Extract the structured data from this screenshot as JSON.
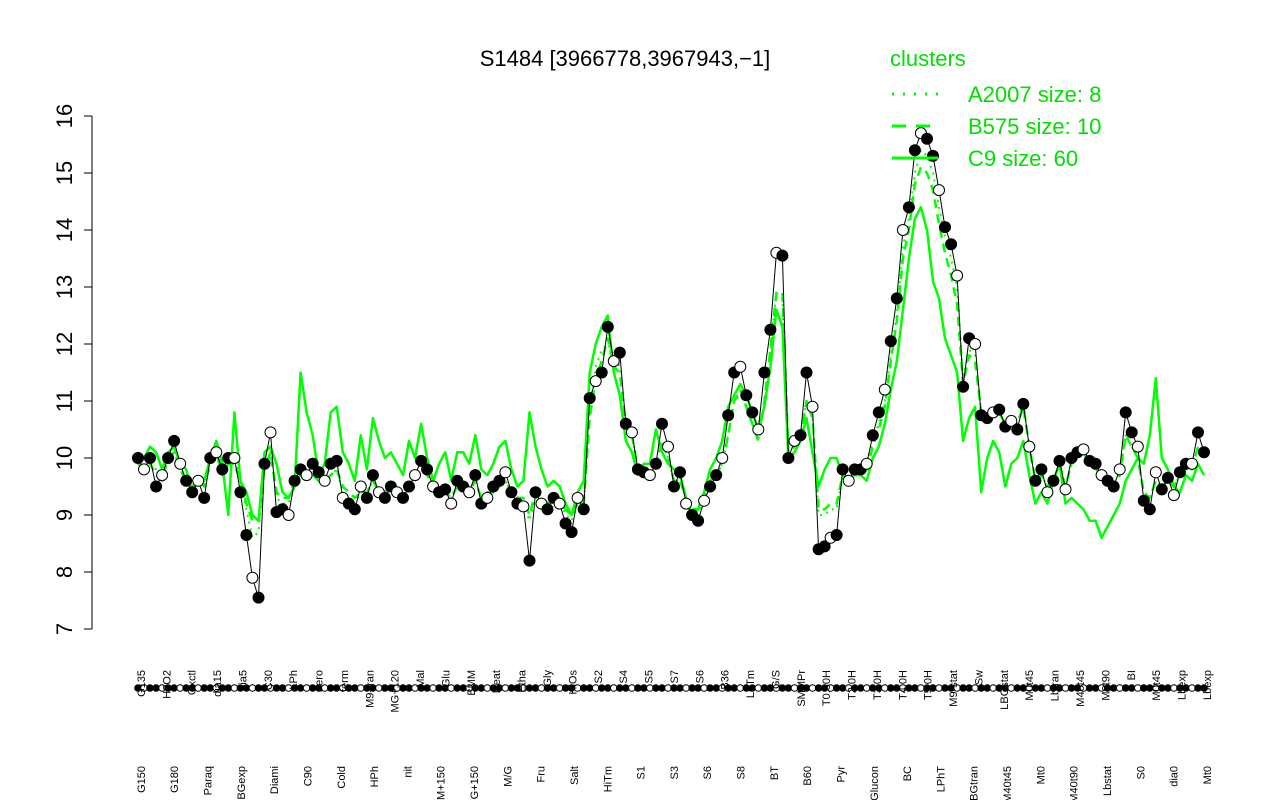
{
  "chart_data": {
    "type": "line",
    "title": "S1484 [3966778,3967943,−1]",
    "xlabel": "",
    "ylabel": "",
    "ylim": [
      7,
      16
    ],
    "yticks": [
      7,
      8,
      9,
      10,
      11,
      12,
      13,
      14,
      15,
      16
    ],
    "grid": false,
    "legend": {
      "title": "clusters",
      "position": "top-right",
      "items": [
        {
          "label": "A2007 size: 8",
          "style": "dotted"
        },
        {
          "label": "B575 size: 10",
          "style": "dashed"
        },
        {
          "label": "C9 size: 60",
          "style": "solid"
        }
      ]
    },
    "x_labels_upper": [
      "G135",
      "H2O2",
      "Oxctl",
      "dia15",
      "dia5",
      "C30",
      "LPh",
      "aero",
      "ferm",
      "M9-tran",
      "MG+120",
      "Mal",
      "Glu",
      "BMM",
      "Heat",
      "Etha",
      "Gly",
      "HiOs",
      "S2",
      "S4",
      "S5",
      "S7",
      "S6",
      "B36",
      "LoTm",
      "G/S",
      "SMMPr",
      "T0.30H",
      "T2.0H",
      "T3.0H",
      "T4.0H",
      "T5.0H",
      "M9-stat",
      "Sw",
      "LBGstat",
      "M0t45",
      "Lbtran",
      "M40t45",
      "M0t90",
      "BI",
      "M0t45",
      "Lbexp",
      "Lbexp"
    ],
    "x_labels_lower": [
      "G150",
      "G180",
      "Paraq",
      "LBGexp",
      "Diami",
      "C90",
      "Cold",
      "HPh",
      "nit",
      "GM+150",
      "MG+150",
      "M/G",
      "Fru",
      "Salt",
      "HiTm",
      "S1",
      "S3",
      "S6",
      "S8",
      "BT",
      "B60",
      "Pyr",
      "Glucon",
      "BC",
      "LPhT",
      "LBGtran",
      "M40t45",
      "Mt0",
      "M40t90",
      "Lbstat",
      "S0",
      "dia0",
      "Mt0"
    ],
    "series": [
      {
        "name": "",
        "values": [
          10.0,
          9.8,
          10.0,
          9.5,
          9.7,
          10.0,
          10.3,
          9.9,
          9.6,
          9.4,
          9.6,
          9.3,
          10.0,
          10.1,
          9.8,
          10.0,
          10.0,
          9.4,
          8.65,
          7.9,
          7.55,
          9.9,
          10.45,
          9.05,
          9.1,
          9.0,
          9.6,
          9.8,
          9.7,
          9.9,
          9.75,
          9.6,
          9.9,
          9.95,
          9.3,
          9.2,
          9.1,
          9.5,
          9.3,
          9.7,
          9.4,
          9.3,
          9.5,
          9.4,
          9.3,
          9.5,
          9.7,
          9.95,
          9.8,
          9.5,
          9.4,
          9.45,
          9.2,
          9.6,
          9.5,
          9.4,
          9.7,
          9.2,
          9.3,
          9.5,
          9.6,
          9.75,
          9.4,
          9.2,
          9.15,
          8.2,
          9.4,
          9.2,
          9.1,
          9.3,
          9.2,
          8.85,
          8.7,
          9.3,
          9.1,
          11.05,
          11.35,
          11.5,
          12.3,
          11.7,
          11.85,
          10.6,
          10.45,
          9.8,
          9.75,
          9.7,
          9.9,
          10.6,
          10.2,
          9.5,
          9.75,
          9.2,
          9.0,
          8.9,
          9.25,
          9.5,
          9.7,
          10.0,
          10.75,
          11.5,
          11.6,
          11.1,
          10.8,
          10.5,
          11.5,
          12.25,
          13.6,
          13.55,
          10.0,
          10.3,
          10.4,
          11.5,
          10.9,
          8.4,
          8.45,
          8.6,
          8.65,
          9.8,
          9.6,
          9.8,
          9.8,
          9.9,
          10.4,
          10.8,
          11.2,
          12.05,
          12.8,
          14.0,
          14.4,
          15.4,
          15.7,
          15.6,
          15.3,
          14.7,
          14.05,
          13.75,
          13.2,
          11.25,
          12.1,
          12.0,
          10.75,
          10.7,
          10.8,
          10.85,
          10.55,
          10.65,
          10.5,
          10.95,
          10.2,
          9.6,
          9.8,
          9.4,
          9.6,
          9.95,
          9.45,
          10.0,
          10.1,
          10.15,
          9.95,
          9.9,
          9.7,
          9.6,
          9.5,
          9.8,
          10.8,
          10.45,
          10.2,
          9.25,
          9.1,
          9.75,
          9.45,
          9.65,
          9.35,
          9.75,
          9.9,
          9.9,
          10.45,
          10.1
        ]
      },
      {
        "name": "A2007 size: 8",
        "values": [
          10.0,
          9.8,
          9.9,
          9.8,
          9.6,
          10.1,
          10.1,
          9.8,
          9.6,
          9.5,
          9.6,
          9.5,
          10.0,
          10.2,
          9.7,
          10.0,
          10.0,
          9.6,
          9.1,
          8.6,
          8.7,
          9.8,
          10.1,
          9.3,
          9.2,
          9.2,
          9.6,
          9.7,
          9.7,
          9.7,
          9.6,
          9.6,
          9.7,
          9.8,
          9.4,
          9.3,
          9.2,
          9.4,
          9.4,
          9.6,
          9.4,
          9.4,
          9.5,
          9.4,
          9.4,
          9.5,
          9.6,
          9.8,
          9.7,
          9.5,
          9.4,
          9.4,
          9.3,
          9.5,
          9.5,
          9.4,
          9.6,
          9.3,
          9.3,
          9.4,
          9.5,
          9.6,
          9.4,
          9.3,
          9.2,
          8.9,
          9.3,
          9.3,
          9.2,
          9.3,
          9.3,
          9.0,
          8.9,
          9.2,
          9.2,
          10.8,
          11.6,
          11.9,
          12.0,
          11.8,
          11.6,
          10.6,
          10.4,
          9.8,
          9.7,
          9.7,
          9.9,
          10.3,
          10.0,
          9.6,
          9.6,
          9.3,
          9.1,
          9.0,
          9.3,
          9.6,
          9.7,
          9.9,
          10.4,
          11.0,
          11.1,
          10.9,
          10.6,
          10.3,
          11.0,
          11.9,
          12.9,
          12.8,
          10.1,
          10.2,
          10.3,
          11.0,
          10.7,
          9.0,
          9.0,
          9.1,
          9.1,
          9.7,
          9.6,
          9.7,
          9.7,
          9.9,
          10.3,
          10.6,
          11.0,
          11.8,
          12.5,
          13.7,
          14.2,
          15.0,
          15.4,
          15.3,
          15.0,
          14.4,
          13.9,
          13.5,
          13.0,
          11.4,
          11.9,
          11.8,
          10.8,
          10.7,
          10.8,
          10.8,
          10.6,
          10.6,
          10.6,
          11.0,
          10.2,
          9.6,
          9.7,
          9.5,
          9.6,
          9.9,
          9.5,
          9.9,
          10.0,
          10.1,
          9.9,
          9.8,
          9.7,
          9.6,
          9.5,
          9.7,
          10.4,
          10.2,
          10.0,
          9.4,
          9.3,
          9.6,
          9.5,
          9.6,
          9.5,
          9.7,
          9.8,
          9.8,
          10.2,
          10.0
        ]
      },
      {
        "name": "B575 size: 10",
        "values": [
          9.9,
          9.8,
          9.9,
          9.7,
          9.6,
          10.0,
          10.1,
          9.8,
          9.6,
          9.5,
          9.6,
          9.5,
          9.9,
          10.1,
          9.7,
          9.9,
          9.9,
          9.6,
          9.2,
          8.9,
          8.9,
          9.8,
          10.1,
          9.4,
          9.3,
          9.3,
          9.6,
          9.7,
          9.7,
          9.7,
          9.6,
          9.6,
          9.7,
          9.8,
          9.5,
          9.4,
          9.3,
          9.4,
          9.4,
          9.6,
          9.4,
          9.4,
          9.5,
          9.4,
          9.4,
          9.5,
          9.6,
          9.8,
          9.7,
          9.5,
          9.4,
          9.4,
          9.3,
          9.5,
          9.5,
          9.4,
          9.6,
          9.3,
          9.4,
          9.4,
          9.5,
          9.6,
          9.4,
          9.3,
          9.3,
          9.0,
          9.4,
          9.3,
          9.2,
          9.3,
          9.3,
          9.1,
          9.0,
          9.2,
          9.2,
          10.7,
          11.4,
          11.7,
          12.1,
          11.6,
          11.5,
          10.6,
          10.4,
          9.8,
          9.7,
          9.7,
          9.8,
          10.3,
          10.0,
          9.6,
          9.6,
          9.3,
          9.1,
          9.1,
          9.3,
          9.6,
          9.7,
          9.9,
          10.4,
          11.0,
          11.2,
          10.9,
          10.6,
          10.3,
          11.0,
          11.9,
          12.9,
          12.9,
          10.1,
          10.2,
          10.3,
          11.0,
          10.7,
          9.1,
          9.1,
          9.2,
          9.2,
          9.7,
          9.6,
          9.7,
          9.7,
          9.8,
          10.2,
          10.5,
          10.9,
          11.7,
          12.4,
          13.5,
          14.0,
          14.8,
          15.1,
          15.0,
          14.7,
          14.1,
          13.6,
          13.2,
          12.7,
          11.3,
          11.8,
          11.7,
          10.8,
          10.7,
          10.8,
          10.8,
          10.6,
          10.6,
          10.6,
          10.9,
          10.2,
          9.6,
          9.7,
          9.5,
          9.6,
          9.9,
          9.5,
          9.9,
          10.0,
          10.1,
          9.9,
          9.8,
          9.7,
          9.6,
          9.5,
          9.7,
          10.4,
          10.2,
          10.0,
          9.4,
          9.3,
          9.6,
          9.5,
          9.6,
          9.5,
          9.7,
          9.8,
          9.8,
          10.2,
          10.0
        ]
      },
      {
        "name": "C9 size: 60",
        "values": [
          10.1,
          10.0,
          10.2,
          10.1,
          9.8,
          10.1,
          10.2,
          9.9,
          9.8,
          9.4,
          9.6,
          9.6,
          10.0,
          10.3,
          9.9,
          9.0,
          10.8,
          9.6,
          9.4,
          9.0,
          8.9,
          10.1,
          10.2,
          9.9,
          9.4,
          9.3,
          9.5,
          11.5,
          10.8,
          10.4,
          9.7,
          9.9,
          10.8,
          10.9,
          10.1,
          9.9,
          9.6,
          10.4,
          9.8,
          10.7,
          10.3,
          10.0,
          10.1,
          9.9,
          9.7,
          10.3,
          10.0,
          10.6,
          10.0,
          9.6,
          9.9,
          10.1,
          9.6,
          10.1,
          10.1,
          9.9,
          10.4,
          9.8,
          9.7,
          9.9,
          10.2,
          10.3,
          9.8,
          9.5,
          9.6,
          10.8,
          10.2,
          9.8,
          9.5,
          9.6,
          9.5,
          9.2,
          9.0,
          9.4,
          9.6,
          11.5,
          12.0,
          12.3,
          12.5,
          11.5,
          11.1,
          10.3,
          10.1,
          9.7,
          9.9,
          9.9,
          10.5,
          10.1,
          9.9,
          9.8,
          9.7,
          9.3,
          9.0,
          9.1,
          9.4,
          9.8,
          10.0,
          10.3,
          10.9,
          11.1,
          11.3,
          11.1,
          10.8,
          10.5,
          10.9,
          11.6,
          12.6,
          12.3,
          10.0,
          10.1,
          10.3,
          10.7,
          10.1,
          9.5,
          9.8,
          10.0,
          10.0,
          9.7,
          9.6,
          9.8,
          9.7,
          9.6,
          10.0,
          10.2,
          10.6,
          11.2,
          11.7,
          12.6,
          13.5,
          14.2,
          14.4,
          14.0,
          13.1,
          12.8,
          12.1,
          11.8,
          11.5,
          10.3,
          10.7,
          10.9,
          9.4,
          10.0,
          10.3,
          10.1,
          9.5,
          9.9,
          10.0,
          10.3,
          9.7,
          9.2,
          9.4,
          9.2,
          9.6,
          9.9,
          9.2,
          9.3,
          9.2,
          9.1,
          8.9,
          8.9,
          8.6,
          8.8,
          9.0,
          9.2,
          9.6,
          9.8,
          10.0,
          9.9,
          10.4,
          11.4,
          10.0,
          9.8,
          9.5,
          9.4,
          9.7,
          9.6,
          9.9,
          9.7
        ]
      }
    ]
  },
  "colors": {
    "series_main": "#000000",
    "cluster": "#00ff00",
    "legend_text": "#00e000"
  }
}
